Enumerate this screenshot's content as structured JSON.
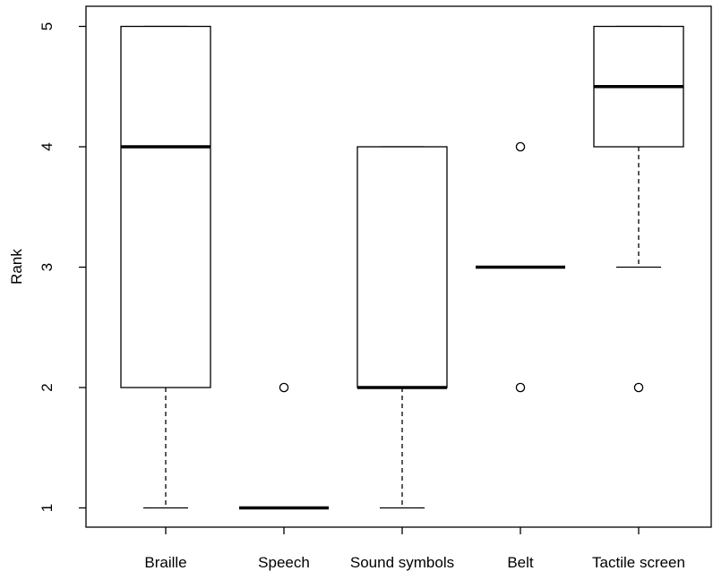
{
  "chart_data": {
    "type": "boxplot",
    "title": "",
    "xlabel": "",
    "ylabel": "Rank",
    "ylim": [
      0.82,
      5.16
    ],
    "y_ticks": [
      1,
      2,
      3,
      4,
      5
    ],
    "categories": [
      "Braille",
      "Speech",
      "Sound symbols",
      "Belt",
      "Tactile screen"
    ],
    "boxes": [
      {
        "category": "Braille",
        "min": 1,
        "q1": 2,
        "median": 4,
        "q3": 5,
        "max": 5,
        "outliers": []
      },
      {
        "category": "Speech",
        "min": 1,
        "q1": 1,
        "median": 1,
        "q3": 1,
        "max": 1,
        "outliers": [
          2
        ]
      },
      {
        "category": "Sound symbols",
        "min": 1,
        "q1": 2,
        "median": 2,
        "q3": 4,
        "max": 4,
        "outliers": []
      },
      {
        "category": "Belt",
        "min": 3,
        "q1": 3,
        "median": 3,
        "q3": 3,
        "max": 3,
        "outliers": [
          2,
          4
        ]
      },
      {
        "category": "Tactile screen",
        "min": 3,
        "q1": 4,
        "median": 4.5,
        "q3": 5,
        "max": 5,
        "outliers": [
          2
        ]
      }
    ],
    "grid": false,
    "legend": "none",
    "colors": {
      "box_fill": "#ffffff",
      "stroke": "#000000"
    }
  }
}
